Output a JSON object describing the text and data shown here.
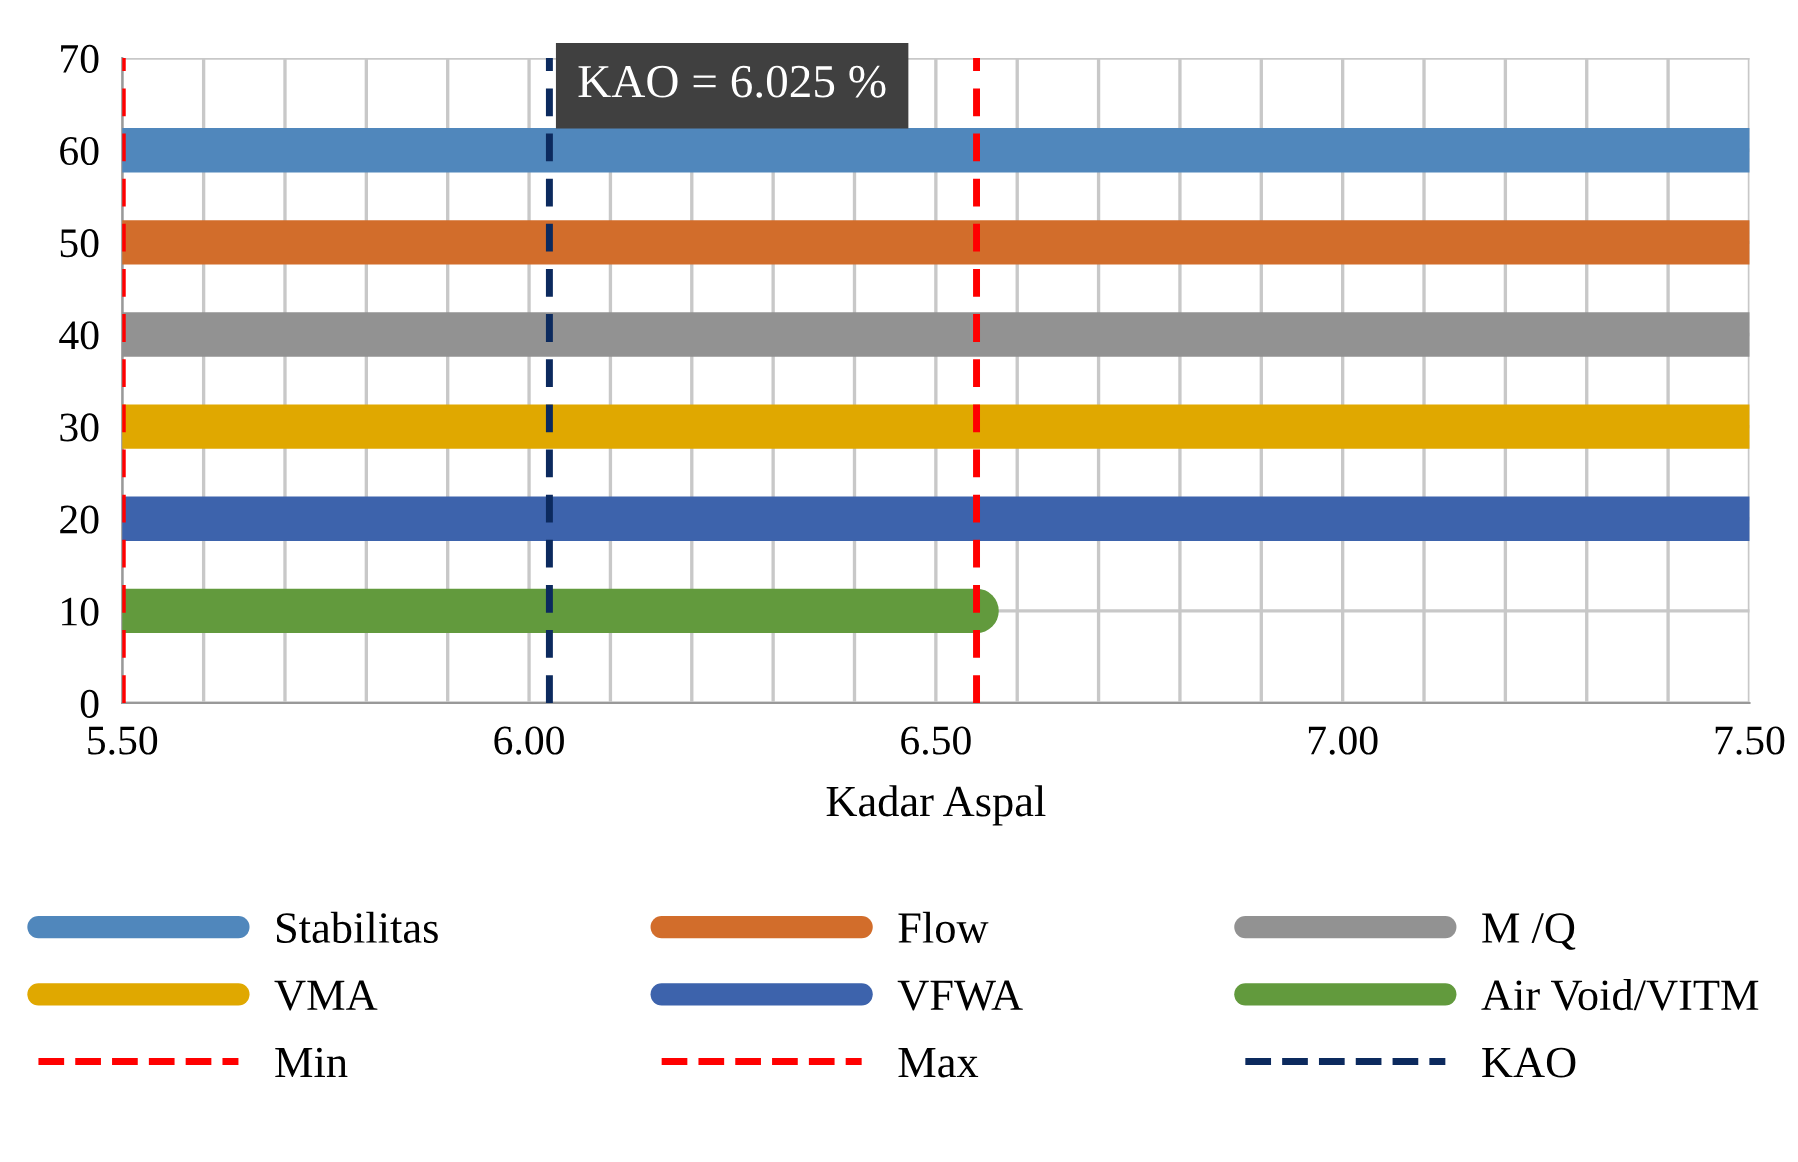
{
  "chart_data": {
    "type": "line",
    "xlabel": "Kadar Aspal",
    "xlim": [
      5.5,
      7.5
    ],
    "ylim": [
      0,
      70
    ],
    "xticks": [
      {
        "value": 5.5,
        "label": "5.50"
      },
      {
        "value": 5.6,
        "label": null
      },
      {
        "value": 5.7,
        "label": null
      },
      {
        "value": 5.8,
        "label": null
      },
      {
        "value": 5.9,
        "label": null
      },
      {
        "value": 6.0,
        "label": "6.00"
      },
      {
        "value": 6.1,
        "label": null
      },
      {
        "value": 6.2,
        "label": null
      },
      {
        "value": 6.3,
        "label": null
      },
      {
        "value": 6.4,
        "label": null
      },
      {
        "value": 6.5,
        "label": "6.50"
      },
      {
        "value": 6.6,
        "label": null
      },
      {
        "value": 6.7,
        "label": null
      },
      {
        "value": 6.8,
        "label": null
      },
      {
        "value": 6.9,
        "label": null
      },
      {
        "value": 7.0,
        "label": "7.00"
      },
      {
        "value": 7.1,
        "label": null
      },
      {
        "value": 7.2,
        "label": null
      },
      {
        "value": 7.3,
        "label": null
      },
      {
        "value": 7.4,
        "label": null
      },
      {
        "value": 7.5,
        "label": "7.50"
      }
    ],
    "yticks": [
      0,
      10,
      20,
      30,
      40,
      50,
      60,
      70
    ],
    "grid": true,
    "legend": "bottom",
    "marker": "none",
    "series": [
      {
        "name": "Stabilitas",
        "color": "#5087bc",
        "x": [
          5.5,
          7.5
        ],
        "values": [
          60,
          60
        ]
      },
      {
        "name": "Flow",
        "color": "#d26d2b",
        "x": [
          5.5,
          7.5
        ],
        "values": [
          50,
          50
        ]
      },
      {
        "name": "M /Q",
        "color": "#929292",
        "x": [
          5.5,
          7.5
        ],
        "values": [
          40,
          40
        ]
      },
      {
        "name": "VMA",
        "color": "#e0a800",
        "x": [
          5.5,
          7.5
        ],
        "values": [
          30,
          30
        ]
      },
      {
        "name": "VFWA",
        "color": "#3d63ac",
        "x": [
          5.5,
          7.5
        ],
        "values": [
          20,
          20
        ]
      },
      {
        "name": "Air Void/VITM",
        "color": "#629a3d",
        "x": [
          5.5,
          6.55
        ],
        "values": [
          10,
          10
        ]
      },
      {
        "name": "Min",
        "color": "#ff0000",
        "line_style": "dashed",
        "x": [
          5.5,
          5.5
        ],
        "values": [
          0,
          70
        ]
      },
      {
        "name": "Max",
        "color": "#ff0000",
        "line_style": "dashed",
        "x": [
          6.55,
          6.55
        ],
        "values": [
          0,
          70
        ]
      },
      {
        "name": "KAO",
        "color": "#0c2a5e",
        "line_style": "dashed",
        "x": [
          6.025,
          6.025
        ],
        "values": [
          0,
          70
        ]
      }
    ],
    "annotations": [
      {
        "text": "KAO = 6.025 %",
        "x": 6.025,
        "y": 67
      }
    ]
  }
}
